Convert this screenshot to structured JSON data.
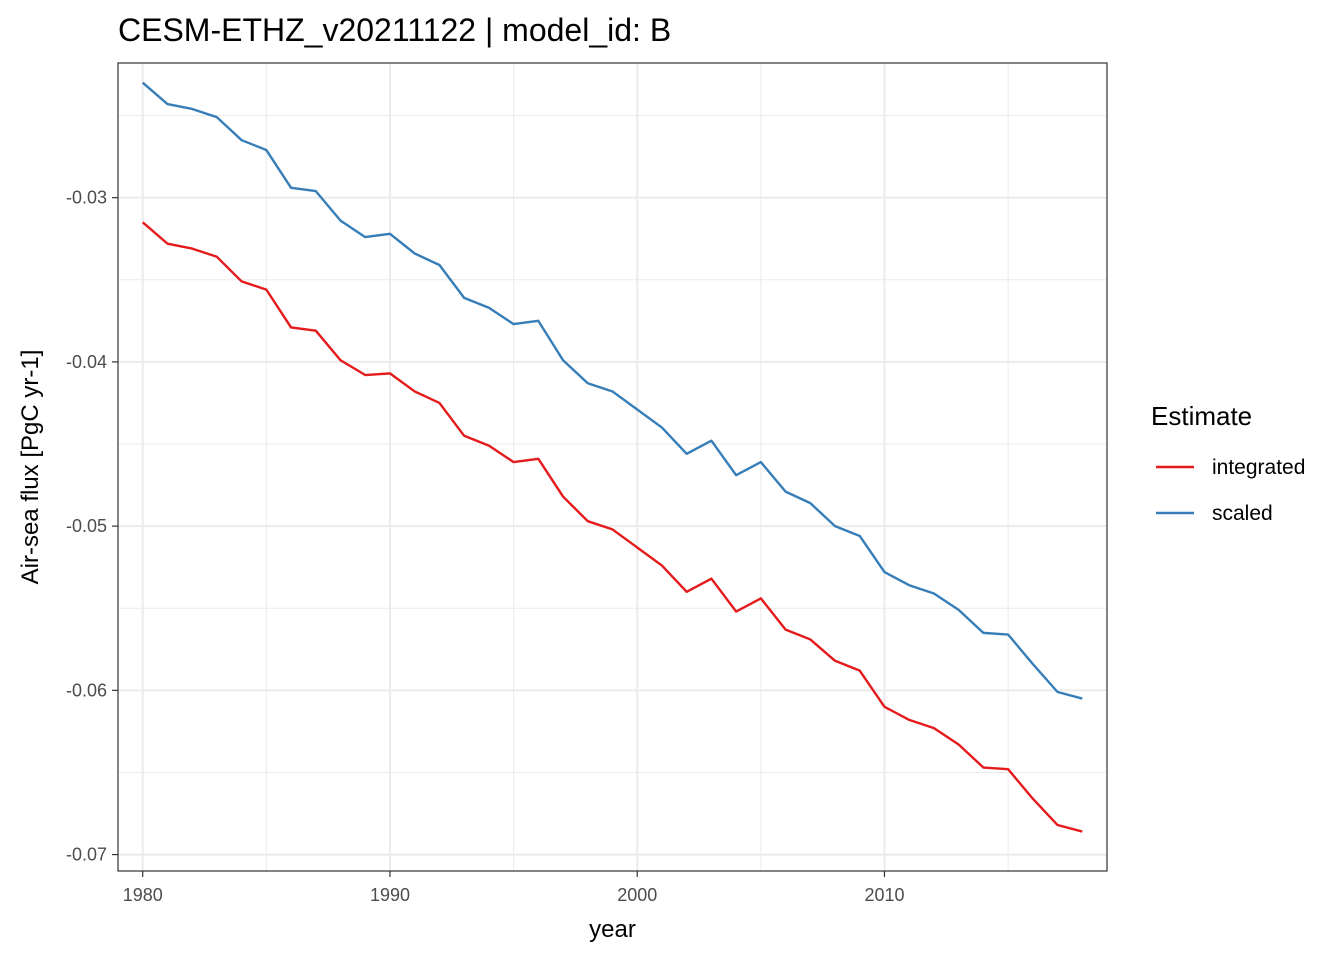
{
  "chart_data": {
    "type": "line",
    "title": "CESM-ETHZ_v20211122 | model_id: B",
    "xlabel": "year",
    "ylabel": "Air-sea flux [PgC yr-1]",
    "xlim": [
      1979,
      2019
    ],
    "ylim": [
      -0.071,
      -0.0218
    ],
    "x_ticks": [
      1980,
      1990,
      2000,
      2010
    ],
    "x_tick_labels": [
      "1980",
      "1990",
      "2000",
      "2010"
    ],
    "y_ticks": [
      -0.07,
      -0.06,
      -0.05,
      -0.04,
      -0.03
    ],
    "y_tick_labels": [
      "-0.07",
      "-0.06",
      "-0.05",
      "-0.04",
      "-0.03"
    ],
    "grid": true,
    "legend": {
      "title": "Estimate",
      "position": "right"
    },
    "x": [
      1980,
      1981,
      1982,
      1983,
      1984,
      1985,
      1986,
      1987,
      1988,
      1989,
      1990,
      1991,
      1992,
      1993,
      1994,
      1995,
      1996,
      1997,
      1998,
      1999,
      2000,
      2001,
      2002,
      2003,
      2004,
      2005,
      2006,
      2007,
      2008,
      2009,
      2010,
      2011,
      2012,
      2013,
      2014,
      2015,
      2016,
      2017,
      2018
    ],
    "series": [
      {
        "name": "integrated",
        "color": "#e41a1c",
        "values": [
          -0.0315,
          -0.0328,
          -0.0331,
          -0.0336,
          -0.0351,
          -0.0356,
          -0.0379,
          -0.0381,
          -0.0399,
          -0.0408,
          -0.0407,
          -0.0418,
          -0.0425,
          -0.0445,
          -0.0451,
          -0.0461,
          -0.0459,
          -0.0482,
          -0.0497,
          -0.0502,
          -0.0513,
          -0.0524,
          -0.054,
          -0.0532,
          -0.0552,
          -0.0544,
          -0.0563,
          -0.0569,
          -0.0582,
          -0.0588,
          -0.061,
          -0.0618,
          -0.0623,
          -0.0633,
          -0.0647,
          -0.0648,
          -0.0666,
          -0.0682,
          -0.0686
        ]
      },
      {
        "name": "scaled",
        "color": "#377eb8",
        "values": [
          -0.023,
          -0.0243,
          -0.0246,
          -0.0251,
          -0.0265,
          -0.0271,
          -0.0294,
          -0.0296,
          -0.0314,
          -0.0324,
          -0.0322,
          -0.0334,
          -0.0341,
          -0.0361,
          -0.0367,
          -0.0377,
          -0.0375,
          -0.0399,
          -0.0413,
          -0.0418,
          -0.0429,
          -0.044,
          -0.0456,
          -0.0448,
          -0.0469,
          -0.0461,
          -0.0479,
          -0.0486,
          -0.05,
          -0.0506,
          -0.0528,
          -0.0536,
          -0.0541,
          -0.0551,
          -0.0565,
          -0.0566,
          -0.0584,
          -0.0601,
          -0.0605
        ]
      }
    ]
  }
}
